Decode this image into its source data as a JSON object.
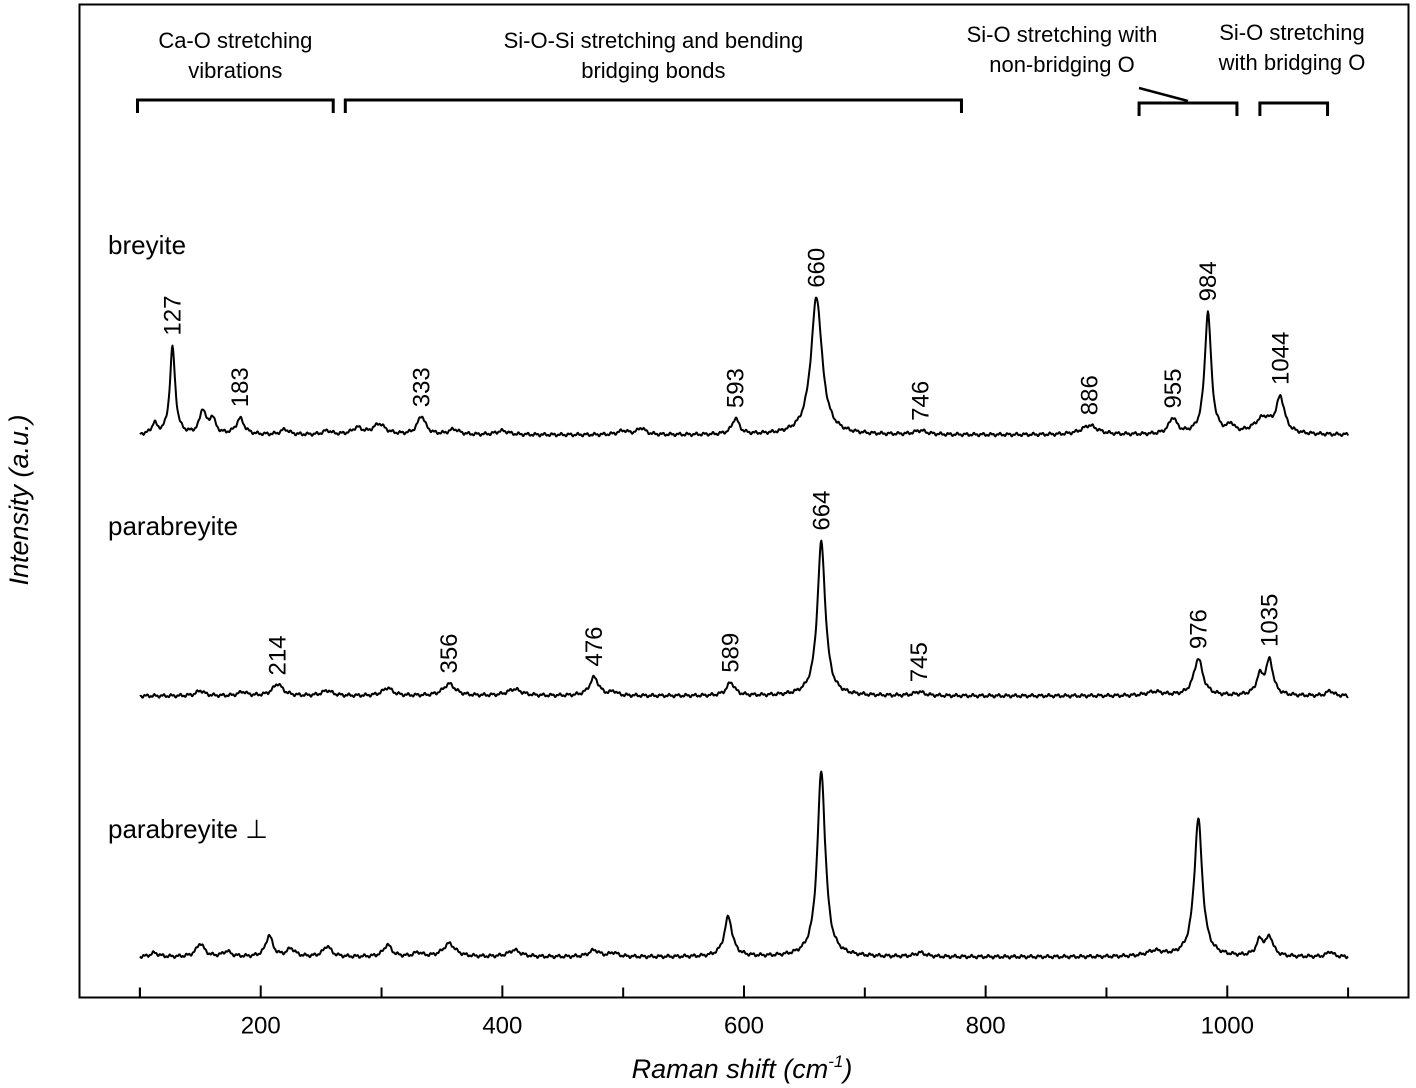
{
  "chart_data": {
    "type": "line",
    "xlabel": "Raman shift (cm",
    "xlabel_sup": "-1",
    "xlabel_close": ")",
    "ylabel": "Intensity (a.u.)",
    "xlim": [
      50,
      1150
    ],
    "xticks": [
      200,
      400,
      600,
      800,
      1000
    ],
    "xticks_minor": [
      100,
      300,
      500,
      700,
      900,
      1100
    ],
    "y_tick_labels": false,
    "grid": false,
    "legend": "none",
    "bands": [
      {
        "lines": [
          "Ca-O stretching",
          "vibrations"
        ],
        "from": 98,
        "to": 260
      },
      {
        "lines": [
          "Si-O-Si stretching and bending",
          "bridging bonds"
        ],
        "from": 270,
        "to": 780
      },
      {
        "lines": [
          "Si-O stretching with",
          "non-bridging O"
        ],
        "from": 927,
        "to": 1008
      },
      {
        "lines": [
          "Si-O stretching",
          "with bridging O"
        ],
        "from": 1027,
        "to": 1083
      }
    ],
    "series": [
      {
        "name": "breyite",
        "peaks": [
          {
            "x": 112,
            "h": 0.04,
            "w": 2.5
          },
          {
            "x": 127,
            "h": 0.33,
            "w": 2.6,
            "label": "127"
          },
          {
            "x": 152,
            "h": 0.09,
            "w": 3
          },
          {
            "x": 160,
            "h": 0.06,
            "w": 3
          },
          {
            "x": 183,
            "h": 0.06,
            "w": 4,
            "label": "183"
          },
          {
            "x": 220,
            "h": 0.02,
            "w": 4
          },
          {
            "x": 255,
            "h": 0.015,
            "w": 4
          },
          {
            "x": 280,
            "h": 0.025,
            "w": 5
          },
          {
            "x": 298,
            "h": 0.04,
            "w": 6
          },
          {
            "x": 333,
            "h": 0.07,
            "w": 4,
            "label": "333"
          },
          {
            "x": 360,
            "h": 0.02,
            "w": 5
          },
          {
            "x": 400,
            "h": 0.015,
            "w": 6
          },
          {
            "x": 500,
            "h": 0.015,
            "w": 5
          },
          {
            "x": 515,
            "h": 0.025,
            "w": 4
          },
          {
            "x": 593,
            "h": 0.06,
            "w": 3.5,
            "label": "593"
          },
          {
            "x": 660,
            "h": 0.52,
            "w": 5.5,
            "label": "660"
          },
          {
            "x": 746,
            "h": 0.015,
            "w": 6,
            "label": "746"
          },
          {
            "x": 886,
            "h": 0.035,
            "w": 8,
            "label": "886"
          },
          {
            "x": 955,
            "h": 0.06,
            "w": 4,
            "label": "955"
          },
          {
            "x": 984,
            "h": 0.46,
            "w": 3.2,
            "label": "984"
          },
          {
            "x": 1003,
            "h": 0.03,
            "w": 3
          },
          {
            "x": 1030,
            "h": 0.06,
            "w": 9
          },
          {
            "x": 1044,
            "h": 0.13,
            "w": 4,
            "label": "1044"
          }
        ]
      },
      {
        "name": "parabreyite",
        "peaks": [
          {
            "x": 150,
            "h": 0.02,
            "w": 4
          },
          {
            "x": 185,
            "h": 0.015,
            "w": 4
          },
          {
            "x": 214,
            "h": 0.045,
            "w": 5,
            "label": "214"
          },
          {
            "x": 255,
            "h": 0.02,
            "w": 5
          },
          {
            "x": 305,
            "h": 0.03,
            "w": 5
          },
          {
            "x": 356,
            "h": 0.045,
            "w": 6,
            "label": "356"
          },
          {
            "x": 410,
            "h": 0.025,
            "w": 7
          },
          {
            "x": 476,
            "h": 0.07,
            "w": 4.5,
            "label": "476"
          },
          {
            "x": 492,
            "h": 0.015,
            "w": 3
          },
          {
            "x": 589,
            "h": 0.05,
            "w": 4,
            "label": "589"
          },
          {
            "x": 664,
            "h": 0.58,
            "w": 4,
            "label": "664"
          },
          {
            "x": 745,
            "h": 0.015,
            "w": 5,
            "label": "745"
          },
          {
            "x": 940,
            "h": 0.015,
            "w": 8
          },
          {
            "x": 976,
            "h": 0.14,
            "w": 4.5,
            "label": "976"
          },
          {
            "x": 1027,
            "h": 0.07,
            "w": 3.5
          },
          {
            "x": 1035,
            "h": 0.13,
            "w": 3.5,
            "label": "1035"
          },
          {
            "x": 1085,
            "h": 0.02,
            "w": 3
          }
        ]
      },
      {
        "name": "parabreyite ⊥",
        "peaks": [
          {
            "x": 112,
            "h": 0.015,
            "w": 4
          },
          {
            "x": 150,
            "h": 0.05,
            "w": 4
          },
          {
            "x": 172,
            "h": 0.02,
            "w": 4
          },
          {
            "x": 207,
            "h": 0.08,
            "w": 3.5
          },
          {
            "x": 225,
            "h": 0.03,
            "w": 4
          },
          {
            "x": 255,
            "h": 0.04,
            "w": 4
          },
          {
            "x": 305,
            "h": 0.045,
            "w": 4
          },
          {
            "x": 330,
            "h": 0.015,
            "w": 4
          },
          {
            "x": 356,
            "h": 0.05,
            "w": 6
          },
          {
            "x": 410,
            "h": 0.025,
            "w": 6
          },
          {
            "x": 476,
            "h": 0.025,
            "w": 5
          },
          {
            "x": 492,
            "h": 0.015,
            "w": 4
          },
          {
            "x": 587,
            "h": 0.15,
            "w": 4
          },
          {
            "x": 664,
            "h": 0.7,
            "w": 4
          },
          {
            "x": 746,
            "h": 0.015,
            "w": 5
          },
          {
            "x": 940,
            "h": 0.02,
            "w": 8
          },
          {
            "x": 976,
            "h": 0.52,
            "w": 4
          },
          {
            "x": 1027,
            "h": 0.06,
            "w": 3.5
          },
          {
            "x": 1035,
            "h": 0.07,
            "w": 3.5
          },
          {
            "x": 1085,
            "h": 0.02,
            "w": 3
          }
        ]
      }
    ]
  }
}
